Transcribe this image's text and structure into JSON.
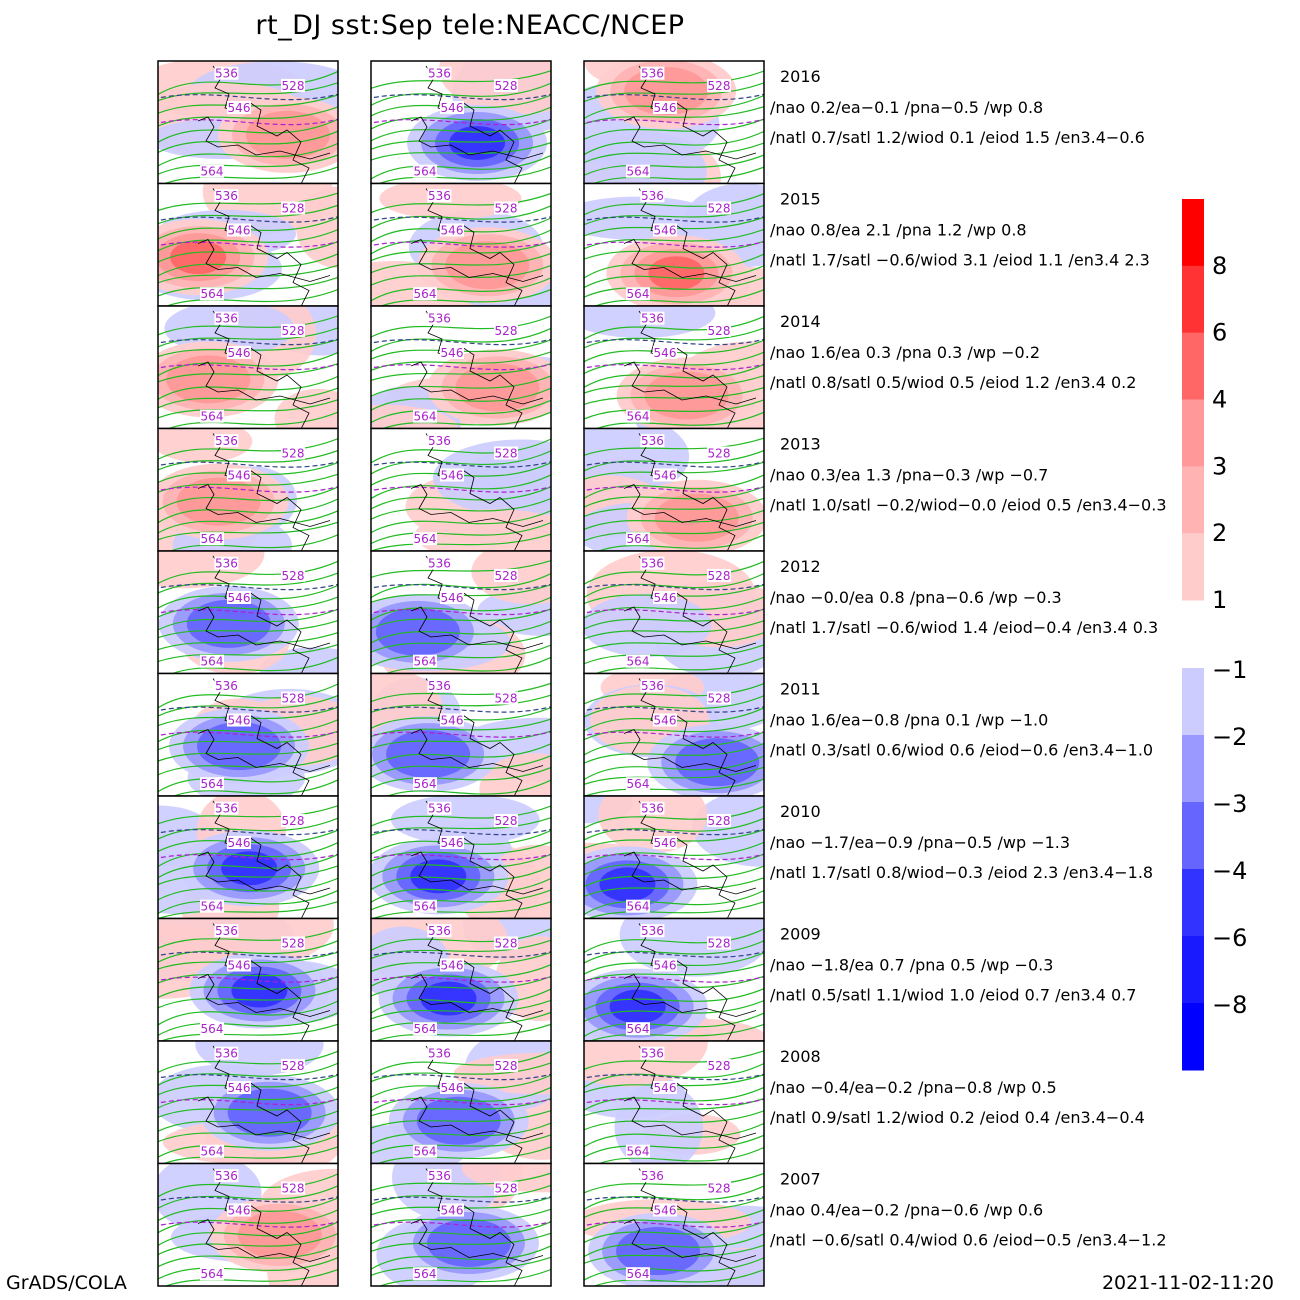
{
  "title": "rt_DJ  sst:Sep  tele:NEACC/NCEP",
  "footer_left": "GrADS/COLA",
  "footer_right": "2021-11-02-11:20",
  "chart_data": {
    "type": "heatmap",
    "panel_columns": 3,
    "contour_labels": [
      "528",
      "536",
      "546",
      "564"
    ],
    "colors": {
      "positive": [
        "#ffcccc",
        "#ffb3b3",
        "#ff9999",
        "#ff6666",
        "#ff3333",
        "#ff0000"
      ],
      "negative": [
        "#ccccff",
        "#9999ff",
        "#6666ff",
        "#3333ff",
        "#1a1aff",
        "#0000ff"
      ],
      "contour_green": "#22bb22",
      "contour_dashed": "#334488",
      "contour_purple": "#aa22cc",
      "coast": "#000000"
    },
    "colorbar_positive_ticks": [
      "8",
      "6",
      "4",
      "3",
      "2",
      "1"
    ],
    "colorbar_negative_ticks": [
      "-1",
      "-2",
      "-3",
      "-4",
      "-6",
      "-8"
    ],
    "rows": [
      {
        "year": "2016",
        "line1": "/nao  0.2/ea−0.1 /pna−0.5 /wp  0.8",
        "line2": "/natl  0.7/satl  1.2/wiod 0.1 /eiod 1.5 /en3.4−0.6",
        "pattern": [
          1,
          -2,
          1
        ]
      },
      {
        "year": "2015",
        "line1": "/nao  0.8/ea 2.1 /pna 1.2 /wp  0.8",
        "line2": "/natl  1.7/satl −0.6/wiod 3.1 /eiod 1.1 /en3.4 2.3",
        "pattern": [
          2,
          1,
          2
        ]
      },
      {
        "year": "2014",
        "line1": "/nao  1.6/ea 0.3 /pna 0.3 /wp −0.2",
        "line2": "/natl  0.8/satl  0.5/wiod 0.5 /eiod 1.2 /en3.4 0.2",
        "pattern": [
          1,
          1,
          1
        ]
      },
      {
        "year": "2013",
        "line1": "/nao  0.3/ea 1.3 /pna−0.3 /wp −0.7",
        "line2": "/natl  1.0/satl −0.2/wiod−0.0 /eiod 0.5 /en3.4−0.3",
        "pattern": [
          1,
          0,
          1
        ]
      },
      {
        "year": "2012",
        "line1": "/nao −0.0/ea 0.8 /pna−0.6 /wp −0.3",
        "line2": "/natl  1.7/satl −0.6/wiod 1.4 /eiod−0.4 /en3.4 0.3",
        "pattern": [
          -1,
          -1,
          0
        ]
      },
      {
        "year": "2011",
        "line1": "/nao  1.6/ea−0.8 /pna 0.1 /wp −1.0",
        "line2": "/natl  0.3/satl  0.6/wiod 0.6 /eiod−0.6 /en3.4−1.0",
        "pattern": [
          -1,
          -1,
          -1
        ]
      },
      {
        "year": "2010",
        "line1": "/nao −1.7/ea−0.9 /pna−0.5 /wp −1.3",
        "line2": "/natl  1.7/satl  0.8/wiod−0.3 /eiod 2.3 /en3.4−1.8",
        "pattern": [
          -2,
          -2,
          -2
        ]
      },
      {
        "year": "2009",
        "line1": "/nao −1.8/ea 0.7 /pna 0.5 /wp −0.3",
        "line2": "/natl  0.5/satl  1.1/wiod 1.0 /eiod 0.7 /en3.4 0.7",
        "pattern": [
          -2,
          -2,
          -2
        ]
      },
      {
        "year": "2008",
        "line1": "/nao −0.4/ea−0.2 /pna−0.8 /wp  0.5",
        "line2": "/natl  0.9/satl  1.2/wiod 0.2 /eiod 0.4 /en3.4−0.4",
        "pattern": [
          -1,
          -1,
          0
        ]
      },
      {
        "year": "2007",
        "line1": "/nao  0.4/ea−0.2 /pna−0.6 /wp  0.6",
        "line2": "/natl −0.6/satl  0.4/wiod 0.6 /eiod−0.5 /en3.4−1.2",
        "pattern": [
          1,
          -1,
          -1
        ]
      }
    ]
  }
}
